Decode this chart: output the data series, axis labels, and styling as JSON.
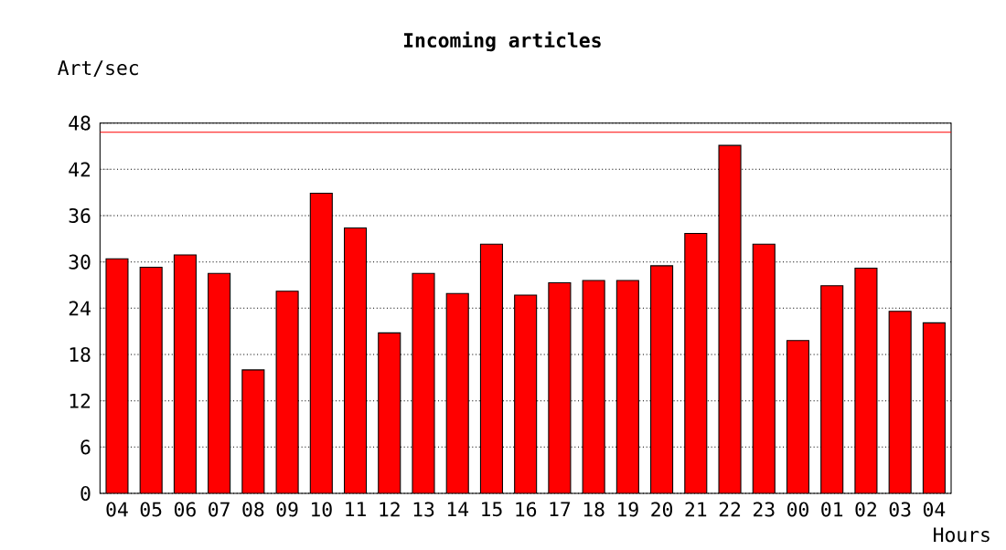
{
  "chart_data": {
    "type": "bar",
    "title": "Incoming articles",
    "xlabel": "Hours",
    "ylabel": "Art/sec",
    "categories": [
      "04",
      "05",
      "06",
      "07",
      "08",
      "09",
      "10",
      "11",
      "12",
      "13",
      "14",
      "15",
      "16",
      "17",
      "18",
      "19",
      "20",
      "21",
      "22",
      "23",
      "00",
      "01",
      "02",
      "03",
      "04"
    ],
    "values": [
      30.4,
      29.3,
      30.9,
      28.5,
      16.0,
      26.2,
      38.9,
      34.4,
      20.8,
      28.5,
      25.9,
      32.3,
      25.7,
      27.3,
      27.6,
      27.6,
      29.5,
      33.7,
      45.1,
      32.3,
      19.8,
      26.9,
      29.2,
      23.6,
      22.1
    ],
    "color": "#ff0000",
    "ylim": [
      0,
      48
    ],
    "yticks": [
      0,
      6,
      12,
      18,
      24,
      30,
      36,
      42,
      48
    ],
    "grid": "y",
    "ref_lines": [
      {
        "axis": "y",
        "value": 46.8,
        "color": "#ff0000"
      }
    ]
  }
}
